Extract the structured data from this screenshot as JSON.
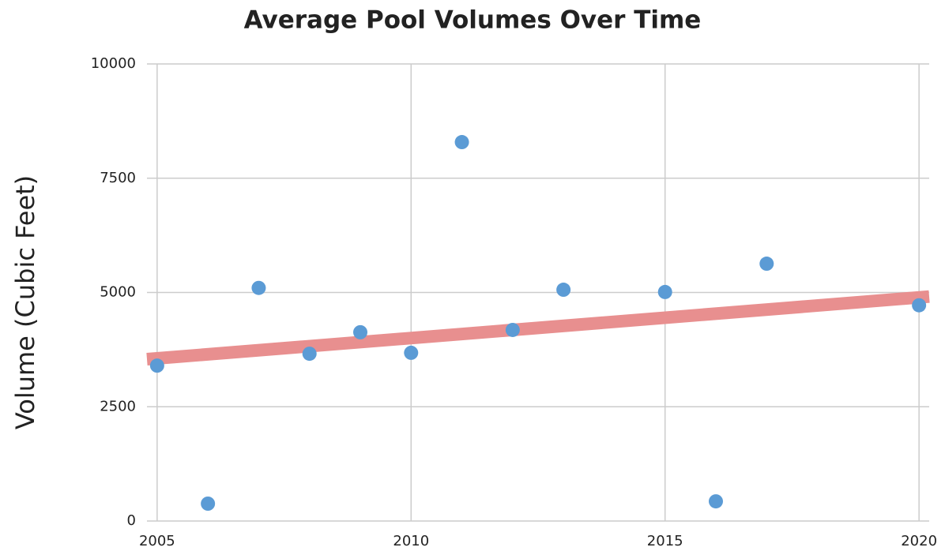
{
  "chart_data": {
    "type": "scatter",
    "title": "Average Pool Volumes Over Time",
    "y_label": "Volume (Cubic Feet)",
    "x": [
      2005,
      2006,
      2007,
      2008,
      2009,
      2010,
      2011,
      2012,
      2013,
      2015,
      2016,
      2017,
      2020
    ],
    "values": [
      3400,
      380,
      5100,
      3660,
      4130,
      3680,
      8290,
      4180,
      5060,
      5010,
      430,
      5630,
      4720
    ],
    "color": "#5b9bd5",
    "trendline": {
      "x": [
        2004.8,
        2020.2
      ],
      "values": [
        3540,
        4910
      ],
      "color": "#e88f8f"
    },
    "xlim": [
      2004.8,
      2020.2
    ],
    "xticks": [
      2005,
      2010,
      2015,
      2020
    ],
    "ylim": [
      0,
      10000
    ],
    "yticks": [
      0,
      2500,
      5000,
      7500,
      10000
    ],
    "grid": true
  }
}
